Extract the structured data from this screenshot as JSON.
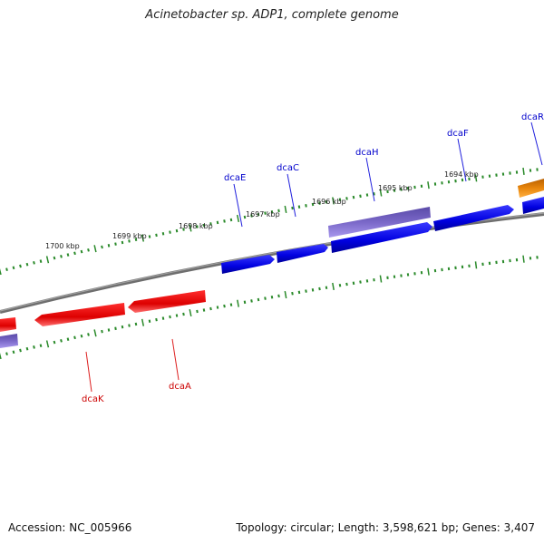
{
  "title": "Acinetobacter sp. ADP1, complete genome",
  "accession": "Accession: NC_005966",
  "summary": "Topology: circular; Length: 3,598,621 bp; Genes: 3,407",
  "ruler": {
    "labels": [
      "1700 kbp",
      "1699 kbp",
      "1698 kbp",
      "1697 kbp",
      "1696 kbp",
      "1695 kbp",
      "1694 kbp"
    ]
  },
  "genes": [
    {
      "name": "dcaR",
      "strand": "forward",
      "color": "#e8860c"
    },
    {
      "name": "dcaF",
      "strand": "forward",
      "color": "#0000dd"
    },
    {
      "name": "dcaH",
      "strand": "forward",
      "color": "#7a68c8"
    },
    {
      "name": "dcaC",
      "strand": "forward",
      "color": "#0000dd"
    },
    {
      "name": "dcaE",
      "strand": "forward",
      "color": "#0000dd"
    },
    {
      "name": "dcaA",
      "strand": "reverse",
      "color": "#dd0000"
    },
    {
      "name": "dcaK",
      "strand": "reverse",
      "color": "#dd0000"
    }
  ],
  "colors": {
    "backbone": "#808080",
    "ticks": "#2a8a2a",
    "forward_label": "#0000cc",
    "reverse_label": "#cc0000"
  }
}
